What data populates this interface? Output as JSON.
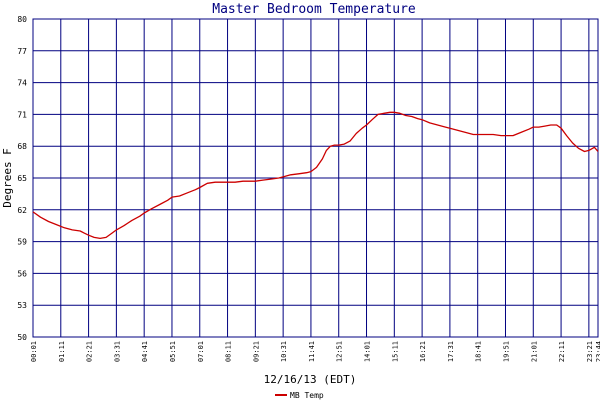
{
  "chart_data": {
    "type": "line",
    "title": "Master Bedroom Temperature",
    "xlabel": "12/16/13 (EDT)",
    "ylabel": "Degrees F",
    "ylim": [
      50,
      80
    ],
    "yticks": [
      50,
      53,
      56,
      59,
      62,
      65,
      68,
      71,
      74,
      77,
      80
    ],
    "xtick_labels": [
      "00:01",
      "01:11",
      "02:21",
      "03:31",
      "04:41",
      "05:51",
      "07:01",
      "08:11",
      "09:21",
      "10:31",
      "11:41",
      "12:51",
      "14:01",
      "15:11",
      "16:21",
      "17:31",
      "18:41",
      "19:51",
      "21:01",
      "22:11",
      "23:21",
      "23:44"
    ],
    "grid": true,
    "colors": {
      "grid": "#000080",
      "line": "#cc0000",
      "title": "#000080"
    },
    "legend_position": "bottom-center",
    "series": [
      {
        "name": "MB Temp",
        "x": [
          "00:01",
          "00:20",
          "00:40",
          "01:00",
          "01:20",
          "01:40",
          "02:00",
          "02:10",
          "02:21",
          "02:35",
          "02:50",
          "03:05",
          "03:20",
          "03:31",
          "03:50",
          "04:10",
          "04:30",
          "04:41",
          "05:00",
          "05:20",
          "05:40",
          "05:51",
          "06:10",
          "06:30",
          "06:50",
          "07:01",
          "07:20",
          "07:40",
          "08:00",
          "08:11",
          "08:30",
          "08:50",
          "09:10",
          "09:21",
          "09:40",
          "10:00",
          "10:20",
          "10:31",
          "10:50",
          "11:10",
          "11:30",
          "11:41",
          "11:55",
          "12:10",
          "12:20",
          "12:30",
          "12:40",
          "12:51",
          "13:05",
          "13:20",
          "13:35",
          "13:50",
          "14:01",
          "14:15",
          "14:30",
          "14:45",
          "15:00",
          "15:11",
          "15:25",
          "15:40",
          "15:55",
          "16:10",
          "16:21",
          "16:40",
          "17:00",
          "17:20",
          "17:31",
          "17:50",
          "18:10",
          "18:30",
          "18:41",
          "19:00",
          "19:20",
          "19:40",
          "19:51",
          "20:10",
          "20:30",
          "20:50",
          "21:01",
          "21:15",
          "21:30",
          "21:45",
          "22:00",
          "22:11",
          "22:25",
          "22:40",
          "22:55",
          "23:10",
          "23:21",
          "23:35",
          "23:44"
        ],
        "values": [
          61.8,
          61.3,
          60.9,
          60.6,
          60.3,
          60.1,
          60.0,
          59.8,
          59.6,
          59.4,
          59.3,
          59.4,
          59.8,
          60.1,
          60.5,
          61.0,
          61.4,
          61.7,
          62.1,
          62.5,
          62.9,
          63.2,
          63.3,
          63.6,
          63.9,
          64.1,
          64.5,
          64.6,
          64.6,
          64.6,
          64.6,
          64.7,
          64.7,
          64.7,
          64.8,
          64.9,
          65.0,
          65.1,
          65.3,
          65.4,
          65.5,
          65.6,
          66.0,
          66.8,
          67.6,
          68.0,
          68.1,
          68.1,
          68.2,
          68.5,
          69.2,
          69.7,
          70.0,
          70.5,
          71.0,
          71.1,
          71.2,
          71.2,
          71.1,
          70.9,
          70.8,
          70.6,
          70.5,
          70.2,
          70.0,
          69.8,
          69.7,
          69.5,
          69.3,
          69.1,
          69.1,
          69.1,
          69.1,
          69.0,
          69.0,
          69.0,
          69.3,
          69.6,
          69.8,
          69.8,
          69.9,
          70.0,
          70.0,
          69.7,
          69.0,
          68.3,
          67.8,
          67.5,
          67.6,
          67.9,
          67.5
        ]
      }
    ]
  }
}
